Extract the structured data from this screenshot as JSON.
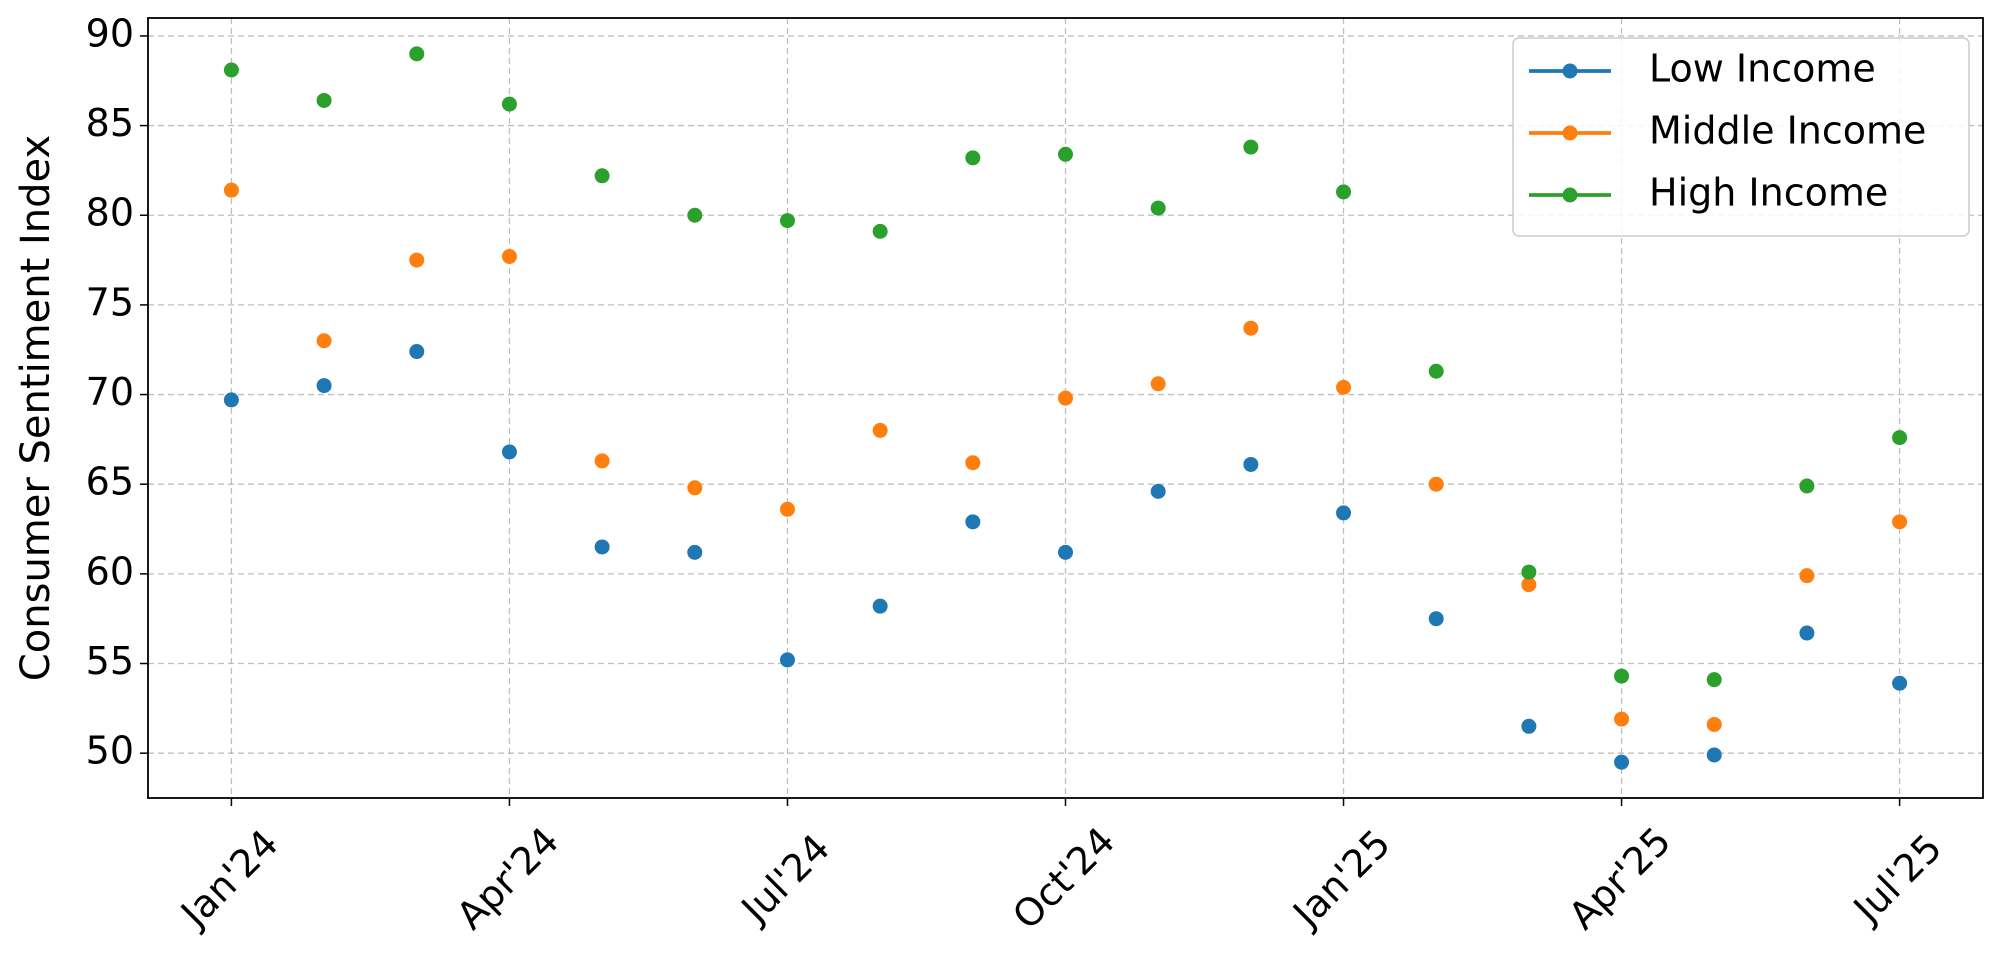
{
  "chart_data": {
    "type": "line",
    "y_label": "Consumer Sentiment Index",
    "categories": [
      "Jan'24",
      null,
      null,
      "Apr'24",
      null,
      null,
      "Jul'24",
      null,
      null,
      "Oct'24",
      null,
      null,
      "Jan'25",
      null,
      null,
      "Apr'25",
      null,
      null,
      "Jul'25"
    ],
    "series": [
      {
        "name": "Low Income",
        "color": "#1f77b4",
        "values": [
          69.7,
          70.5,
          72.4,
          66.8,
          61.5,
          61.2,
          55.2,
          58.2,
          62.9,
          61.2,
          64.6,
          66.1,
          63.4,
          57.5,
          51.5,
          49.5,
          49.9,
          56.7,
          53.9
        ]
      },
      {
        "name": "Middle Income",
        "color": "#ff7f0e",
        "values": [
          81.4,
          73.0,
          77.5,
          77.7,
          66.3,
          64.8,
          63.6,
          68.0,
          66.2,
          69.8,
          70.6,
          73.7,
          70.4,
          65.0,
          59.4,
          51.9,
          51.6,
          59.9,
          62.9
        ]
      },
      {
        "name": "High Income",
        "color": "#2ca02c",
        "values": [
          88.1,
          86.4,
          89.0,
          86.2,
          82.2,
          80.0,
          79.7,
          79.1,
          83.2,
          83.4,
          80.4,
          83.8,
          81.3,
          71.3,
          60.1,
          54.3,
          54.1,
          64.9,
          67.6
        ]
      }
    ],
    "ylim": [
      47.5,
      91
    ],
    "yticks": [
      50,
      55,
      60,
      65,
      70,
      75,
      80,
      85,
      90
    ],
    "grid": true,
    "legend": "upper-right"
  }
}
